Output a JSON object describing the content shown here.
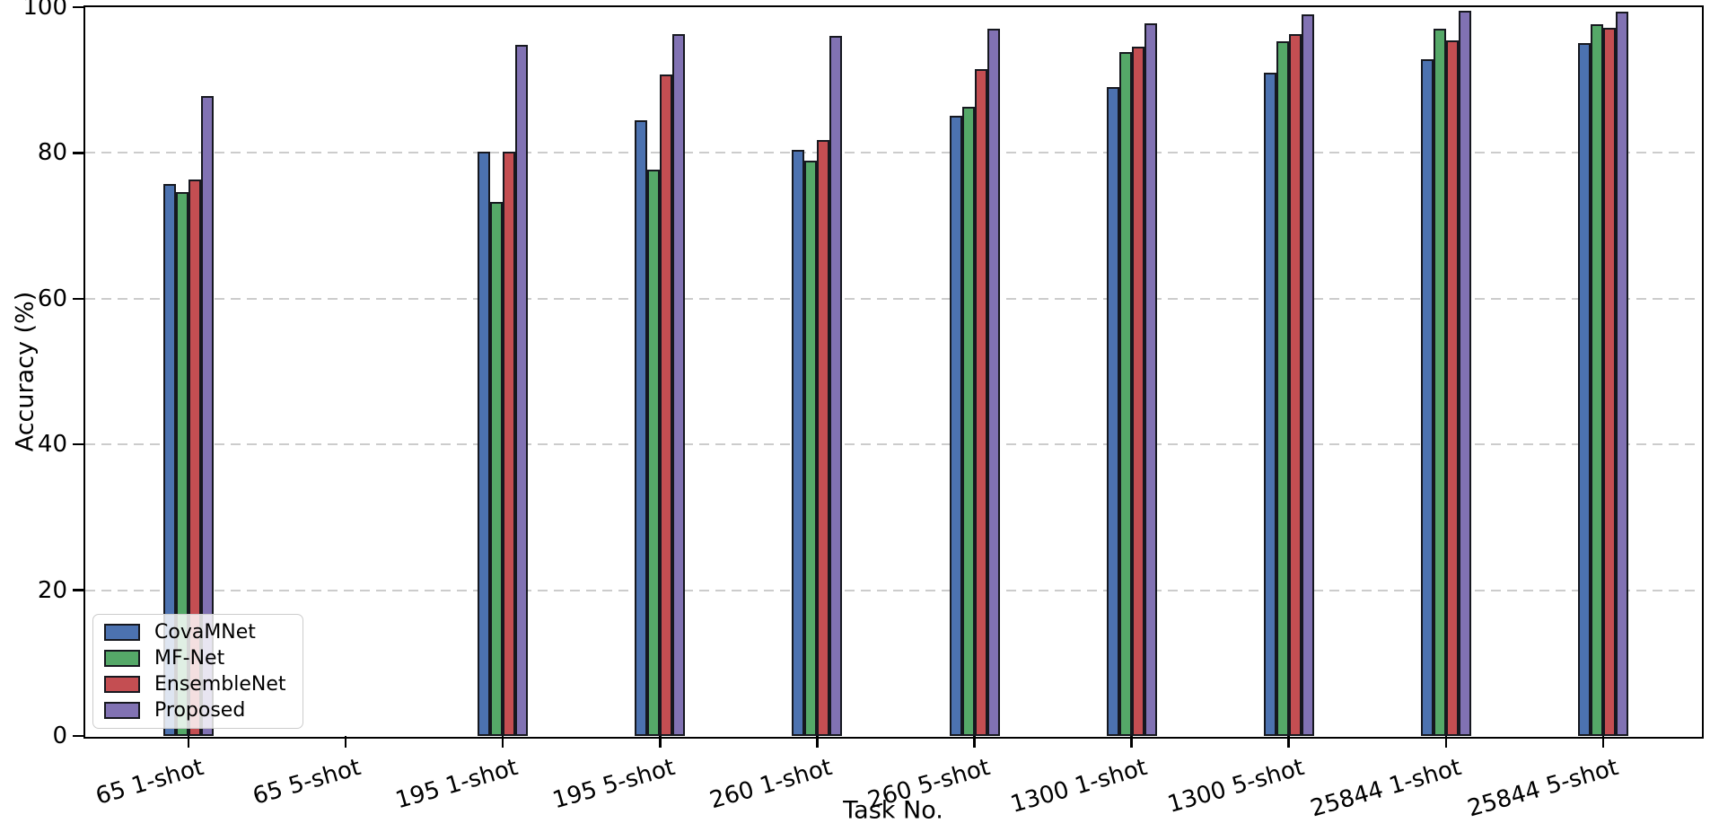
{
  "figure": {
    "background_color": "#ffffff",
    "axes_edge_color": "#000000",
    "gridline_color": "#cccccc",
    "bar_edge_color": "#16181f"
  },
  "chart_data": {
    "type": "bar",
    "title": "",
    "xlabel": "Task No.",
    "ylabel": "Accuracy (%)",
    "ylim": [
      0,
      100
    ],
    "yticks": [
      0,
      20,
      40,
      60,
      80,
      100
    ],
    "grid": "horizontal dashed gridlines at y ticks",
    "xtick_rotation_deg": 16,
    "legend": {
      "position": "lower left",
      "entries": [
        "CovaMNet",
        "MF-Net",
        "EnsembleNet",
        "Proposed"
      ]
    },
    "categories": [
      "65 1-shot",
      "65 5-shot",
      "195 1-shot",
      "195 5-shot",
      "260 1-shot",
      "260 5-shot",
      "1300 1-shot",
      "1300 5-shot",
      "25844 1-shot",
      "25844 5-shot"
    ],
    "missing_categories": [
      "65 5-shot"
    ],
    "series": [
      {
        "name": "CovaMNet",
        "color": "#4C72B0",
        "values": [
          75.7,
          null,
          80.2,
          84.5,
          80.4,
          85.1,
          89.1,
          91.0,
          92.9,
          95.1
        ]
      },
      {
        "name": "MF-Net",
        "color": "#55A868",
        "values": [
          74.6,
          null,
          73.3,
          77.7,
          78.9,
          86.3,
          93.8,
          95.3,
          97.1,
          97.7
        ]
      },
      {
        "name": "EnsembleNet",
        "color": "#C44E52",
        "values": [
          76.4,
          null,
          80.2,
          90.8,
          81.8,
          91.5,
          94.6,
          96.3,
          95.5,
          97.2
        ]
      },
      {
        "name": "Proposed",
        "color": "#8172B3",
        "values": [
          87.8,
          null,
          94.8,
          96.3,
          96.0,
          97.0,
          97.8,
          99.0,
          99.5,
          99.4
        ]
      }
    ]
  }
}
